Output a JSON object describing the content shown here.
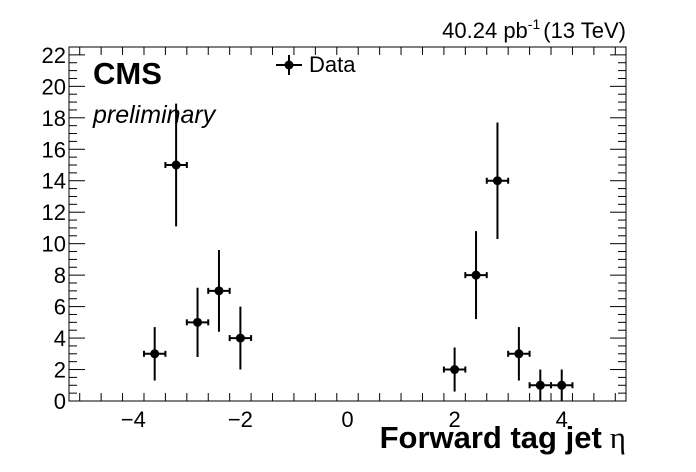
{
  "header": {
    "lumi_value": "40.24 pb",
    "lumi_exponent": "-1",
    "energy": "(13 TeV)"
  },
  "labels": {
    "experiment": "CMS",
    "status": "preliminary"
  },
  "chart_data": {
    "type": "scatter",
    "title": "",
    "xlabel_text": "Forward tag jet",
    "xlabel_symbol": "η",
    "ylabel": "",
    "xlim": [
      -5.2,
      5.2
    ],
    "ylim": [
      0,
      22.5
    ],
    "x_ticks": [
      -4,
      -2,
      0,
      2,
      4
    ],
    "x_tick_labels": [
      "−4",
      "−2",
      "0",
      "2",
      "4"
    ],
    "y_ticks": [
      0,
      2,
      4,
      6,
      8,
      10,
      12,
      14,
      16,
      18,
      20,
      22
    ],
    "y_tick_labels": [
      "0",
      "2",
      "4",
      "6",
      "8",
      "10",
      "12",
      "14",
      "16",
      "18",
      "20",
      "22"
    ],
    "grid": false,
    "legend": {
      "placement": "top-center",
      "entries": [
        "Data"
      ]
    },
    "series": [
      {
        "name": "Data",
        "color": "#000000",
        "points": [
          {
            "x": -3.6,
            "y": 3,
            "xerr": 0.2,
            "yerr_lo": 1.7,
            "yerr_hi": 1.7
          },
          {
            "x": -3.2,
            "y": 15,
            "xerr": 0.2,
            "yerr_lo": 3.9,
            "yerr_hi": 3.9
          },
          {
            "x": -2.8,
            "y": 5,
            "xerr": 0.2,
            "yerr_lo": 2.2,
            "yerr_hi": 2.2
          },
          {
            "x": -2.4,
            "y": 7,
            "xerr": 0.2,
            "yerr_lo": 2.6,
            "yerr_hi": 2.6
          },
          {
            "x": -2.0,
            "y": 4,
            "xerr": 0.2,
            "yerr_lo": 2.0,
            "yerr_hi": 2.0
          },
          {
            "x": 2.0,
            "y": 2,
            "xerr": 0.2,
            "yerr_lo": 1.4,
            "yerr_hi": 1.4
          },
          {
            "x": 2.4,
            "y": 8,
            "xerr": 0.2,
            "yerr_lo": 2.8,
            "yerr_hi": 2.8
          },
          {
            "x": 2.8,
            "y": 14,
            "xerr": 0.2,
            "yerr_lo": 3.7,
            "yerr_hi": 3.7
          },
          {
            "x": 3.2,
            "y": 3,
            "xerr": 0.2,
            "yerr_lo": 1.7,
            "yerr_hi": 1.7
          },
          {
            "x": 3.6,
            "y": 1,
            "xerr": 0.2,
            "yerr_lo": 1.0,
            "yerr_hi": 1.0
          },
          {
            "x": 4.0,
            "y": 1,
            "xerr": 0.2,
            "yerr_lo": 1.0,
            "yerr_hi": 1.0
          }
        ]
      }
    ]
  }
}
